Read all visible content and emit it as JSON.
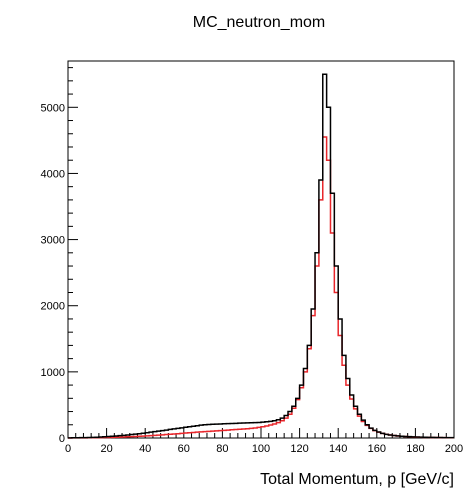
{
  "chart_data": {
    "type": "line",
    "title": "MC_neutron_mom",
    "xlabel": "Total Momentum, p [GeV/c]",
    "ylabel": "",
    "xlim": [
      0,
      200
    ],
    "ylim": [
      0,
      5700
    ],
    "x_ticks": [
      "0",
      "20",
      "40",
      "60",
      "80",
      "100",
      "120",
      "140",
      "160",
      "180",
      "200"
    ],
    "y_ticks": [
      "0",
      "1000",
      "2000",
      "3000",
      "4000",
      "5000"
    ],
    "y_tick_values": [
      0,
      1000,
      2000,
      3000,
      4000,
      5000
    ],
    "grid": false,
    "bin_width": 2,
    "x": [
      1,
      3,
      5,
      7,
      9,
      11,
      13,
      15,
      17,
      19,
      21,
      23,
      25,
      27,
      29,
      31,
      33,
      35,
      37,
      39,
      41,
      43,
      45,
      47,
      49,
      51,
      53,
      55,
      57,
      59,
      61,
      63,
      65,
      67,
      69,
      71,
      73,
      75,
      77,
      79,
      81,
      83,
      85,
      87,
      89,
      91,
      93,
      95,
      97,
      99,
      101,
      103,
      105,
      107,
      109,
      111,
      113,
      115,
      117,
      119,
      121,
      123,
      125,
      127,
      129,
      131,
      133,
      135,
      137,
      139,
      141,
      143,
      145,
      147,
      149,
      151,
      153,
      155,
      157,
      159,
      161,
      163,
      165,
      167,
      169,
      171,
      173,
      175,
      177,
      179,
      181,
      183,
      185,
      187,
      189,
      191,
      193,
      195,
      197,
      199
    ],
    "series": [
      {
        "color": "#000000",
        "values": [
          2,
          3,
          4,
          5,
          6,
          8,
          10,
          12,
          15,
          18,
          22,
          26,
          30,
          35,
          40,
          46,
          52,
          58,
          65,
          72,
          80,
          88,
          96,
          104,
          112,
          120,
          130,
          138,
          146,
          154,
          162,
          170,
          178,
          186,
          194,
          200,
          204,
          208,
          210,
          212,
          215,
          218,
          220,
          222,
          224,
          226,
          228,
          230,
          232,
          235,
          240,
          245,
          252,
          260,
          275,
          300,
          340,
          400,
          480,
          600,
          800,
          1050,
          1400,
          1950,
          2800,
          3900,
          5500,
          5000,
          3700,
          2600,
          1800,
          1250,
          900,
          650,
          480,
          360,
          270,
          200,
          150,
          115,
          90,
          70,
          55,
          45,
          38,
          32,
          27,
          23,
          20,
          17,
          15,
          13,
          11,
          10,
          9,
          8,
          7,
          6,
          5,
          5
        ]
      },
      {
        "color": "#e8262b",
        "values": [
          0,
          1,
          1,
          2,
          2,
          3,
          4,
          5,
          6,
          7,
          8,
          10,
          12,
          14,
          16,
          18,
          20,
          23,
          26,
          29,
          32,
          36,
          40,
          44,
          48,
          52,
          56,
          60,
          65,
          70,
          75,
          80,
          84,
          88,
          92,
          96,
          100,
          104,
          108,
          112,
          116,
          120,
          124,
          128,
          132,
          136,
          140,
          146,
          152,
          160,
          170,
          182,
          196,
          212,
          232,
          260,
          300,
          360,
          450,
          580,
          760,
          1000,
          1350,
          1850,
          2600,
          3600,
          4550,
          4200,
          3100,
          2200,
          1550,
          1100,
          800,
          590,
          440,
          330,
          250,
          190,
          145,
          112,
          88,
          70,
          56,
          45,
          37,
          31,
          26,
          22,
          19,
          16,
          14,
          12,
          10,
          9,
          8,
          7,
          6,
          5,
          4,
          4
        ]
      }
    ]
  }
}
